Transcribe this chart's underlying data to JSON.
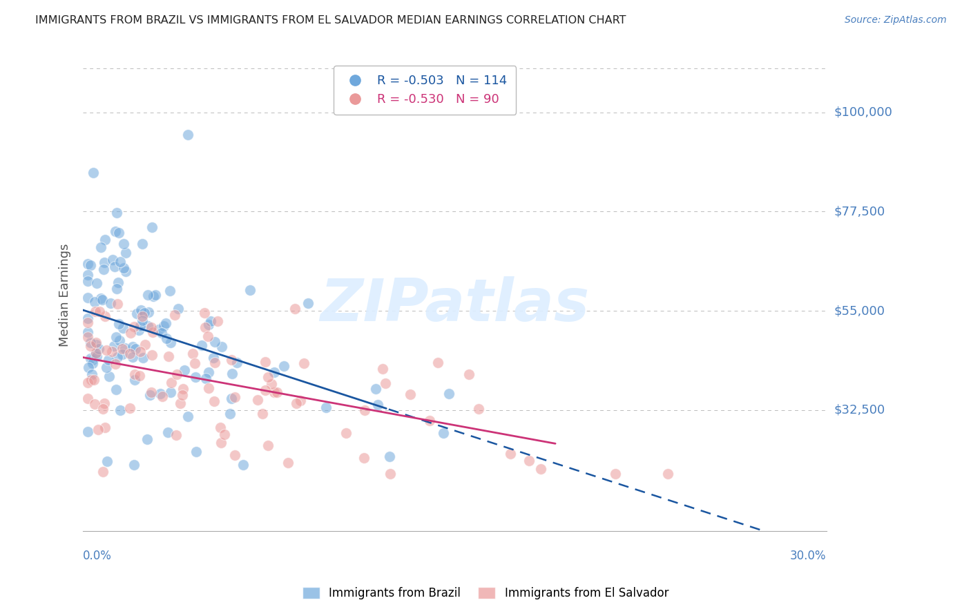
{
  "title": "IMMIGRANTS FROM BRAZIL VS IMMIGRANTS FROM EL SALVADOR MEDIAN EARNINGS CORRELATION CHART",
  "source": "Source: ZipAtlas.com",
  "ylabel": "Median Earnings",
  "ylim": [
    5000,
    112000
  ],
  "xlim": [
    0.0,
    0.305
  ],
  "brazil_R": -0.503,
  "brazil_N": 114,
  "salvador_R": -0.53,
  "salvador_N": 90,
  "brazil_color": "#6fa8dc",
  "salvador_color": "#ea9999",
  "brazil_line_color": "#1a56a0",
  "salvador_line_color": "#cc3377",
  "watermark": "ZIPatlas",
  "watermark_color": "#ddeeff",
  "grid_color": "#bbbbbb",
  "background_color": "#ffffff",
  "title_color": "#333333",
  "axis_label_color": "#4a7fbe",
  "ytick_positions": [
    32500,
    55000,
    77500,
    100000
  ],
  "ytick_labels": [
    "$32,500",
    "$55,000",
    "$77,500",
    "$100,000"
  ],
  "xtick_labels_shown": [
    "0.0%",
    "30.0%"
  ]
}
